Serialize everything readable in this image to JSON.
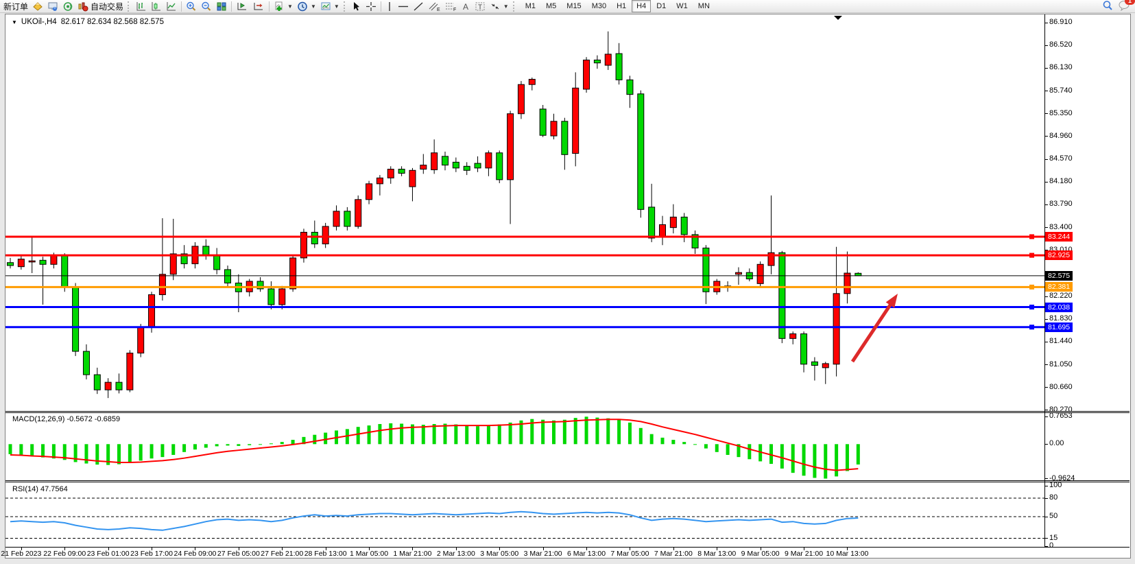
{
  "toolbar": {
    "new_order": "新订单",
    "auto_trading": "自动交易",
    "timeframes": [
      "M1",
      "M5",
      "M15",
      "M30",
      "H1",
      "H4",
      "D1",
      "W1",
      "MN"
    ],
    "active_timeframe": "H4",
    "notification_badge": "1"
  },
  "chart": {
    "symbol_title": "UKOil-,H4",
    "ohlc_text": "82.617 82.634 82.568 82.575"
  },
  "chart_data": [
    {
      "type": "candlestick",
      "title": "UKOil-,H4",
      "current_bar": {
        "open": "82.617",
        "high": "82.634",
        "low": "82.568",
        "close": "82.575"
      },
      "y_axis_ticks": [
        "86.910",
        "86.520",
        "86.130",
        "85.740",
        "85.350",
        "84.960",
        "84.570",
        "84.180",
        "83.790",
        "83.400",
        "83.010",
        "82.220",
        "81.830",
        "81.440",
        "81.050",
        "80.660",
        "80.270"
      ],
      "x_axis_labels": [
        "21 Feb 2023",
        "22 Feb 09:00",
        "23 Feb 01:00",
        "23 Feb 17:00",
        "24 Feb 09:00",
        "27 Feb 05:00",
        "27 Feb 21:00",
        "28 Feb 13:00",
        "1 Mar 05:00",
        "1 Mar 21:00",
        "2 Mar 13:00",
        "3 Mar 05:00",
        "3 Mar 21:00",
        "6 Mar 13:00",
        "7 Mar 05:00",
        "7 Mar 21:00",
        "8 Mar 13:00",
        "9 Mar 05:00",
        "9 Mar 21:00",
        "10 Mar 13:00"
      ],
      "ylim": [
        80.27,
        86.91
      ],
      "grid": false,
      "colors": {
        "bull": "#FF0000",
        "bear": "#00D800",
        "wick": "#000000",
        "background": "#FFFFFF"
      },
      "hlines": [
        {
          "label": "83.244",
          "price": 83.244,
          "color": "#FE0000",
          "width": 3
        },
        {
          "label": "82.925",
          "price": 82.925,
          "color": "#FE0000",
          "width": 3
        },
        {
          "label": "82.575",
          "price": 82.575,
          "color": "#000000",
          "width": 1
        },
        {
          "label": "82.381",
          "price": 82.381,
          "color": "#FF9B00",
          "width": 3
        },
        {
          "label": "82.038",
          "price": 82.038,
          "color": "#0000FE",
          "width": 3
        },
        {
          "label": "81.695",
          "price": 81.695,
          "color": "#0000FE",
          "width": 3
        }
      ],
      "annotation_arrow": {
        "color": "#DD2A2A",
        "from_price": 80.97,
        "to_price": 82.13,
        "comment": "red up arrow pointing to recovery"
      },
      "bars": [
        [
          82.8,
          82.88,
          82.7,
          82.75
        ],
        [
          82.73,
          82.92,
          82.68,
          82.86
        ],
        [
          82.81,
          83.24,
          82.62,
          82.83
        ],
        [
          82.84,
          82.9,
          82.08,
          82.77
        ],
        [
          82.77,
          82.97,
          82.7,
          82.92
        ],
        [
          82.92,
          82.96,
          82.3,
          82.38
        ],
        [
          82.38,
          82.45,
          81.2,
          81.28
        ],
        [
          81.28,
          81.4,
          80.8,
          80.88
        ],
        [
          80.88,
          81.0,
          80.55,
          80.62
        ],
        [
          80.62,
          80.82,
          80.48,
          80.75
        ],
        [
          80.75,
          80.9,
          80.56,
          80.62
        ],
        [
          80.62,
          81.3,
          80.58,
          81.25
        ],
        [
          81.25,
          81.75,
          81.18,
          81.7
        ],
        [
          81.7,
          82.3,
          81.6,
          82.25
        ],
        [
          82.25,
          83.56,
          82.15,
          82.6
        ],
        [
          82.6,
          83.55,
          82.5,
          82.95
        ],
        [
          82.95,
          83.1,
          82.7,
          82.78
        ],
        [
          82.78,
          83.15,
          82.7,
          83.08
        ],
        [
          83.08,
          83.2,
          82.85,
          82.92
        ],
        [
          82.92,
          83.05,
          82.6,
          82.68
        ],
        [
          82.68,
          82.75,
          82.38,
          82.45
        ],
        [
          82.45,
          82.6,
          81.95,
          82.3
        ],
        [
          82.3,
          82.52,
          82.22,
          82.48
        ],
        [
          82.48,
          82.55,
          82.3,
          82.35
        ],
        [
          82.35,
          82.48,
          82.0,
          82.08
        ],
        [
          82.08,
          82.4,
          82.0,
          82.35
        ],
        [
          82.35,
          82.92,
          82.3,
          82.88
        ],
        [
          82.88,
          83.38,
          82.8,
          83.32
        ],
        [
          83.32,
          83.52,
          83.05,
          83.12
        ],
        [
          83.12,
          83.48,
          83.05,
          83.42
        ],
        [
          83.42,
          83.78,
          83.35,
          83.68
        ],
        [
          83.68,
          83.75,
          83.35,
          83.42
        ],
        [
          83.42,
          83.95,
          83.38,
          83.88
        ],
        [
          83.88,
          84.2,
          83.8,
          84.15
        ],
        [
          84.15,
          84.3,
          83.95,
          84.25
        ],
        [
          84.25,
          84.45,
          84.15,
          84.4
        ],
        [
          84.4,
          84.45,
          84.28,
          84.33
        ],
        [
          84.1,
          84.42,
          83.85,
          84.38
        ],
        [
          84.4,
          84.66,
          84.32,
          84.47
        ],
        [
          84.39,
          84.91,
          84.32,
          84.68
        ],
        [
          84.62,
          84.7,
          84.38,
          84.47
        ],
        [
          84.52,
          84.6,
          84.35,
          84.42
        ],
        [
          84.45,
          84.52,
          84.3,
          84.38
        ],
        [
          84.5,
          84.62,
          84.35,
          84.42
        ],
        [
          84.42,
          84.72,
          84.28,
          84.68
        ],
        [
          84.68,
          84.72,
          84.16,
          84.22
        ],
        [
          84.22,
          85.4,
          83.46,
          85.35
        ],
        [
          85.35,
          85.91,
          85.26,
          85.85
        ],
        [
          85.85,
          85.97,
          85.75,
          85.94
        ],
        [
          85.43,
          85.5,
          84.95,
          84.98
        ],
        [
          84.97,
          85.35,
          84.91,
          85.22
        ],
        [
          85.22,
          85.28,
          84.39,
          84.65
        ],
        [
          84.67,
          86.06,
          84.45,
          85.79
        ],
        [
          85.77,
          86.32,
          85.71,
          86.27
        ],
        [
          86.27,
          86.35,
          86.12,
          86.22
        ],
        [
          86.18,
          86.76,
          86.1,
          86.37
        ],
        [
          86.38,
          86.56,
          85.85,
          85.93
        ],
        [
          85.93,
          86.0,
          85.45,
          85.68
        ],
        [
          85.69,
          85.75,
          83.57,
          83.71
        ],
        [
          83.75,
          84.15,
          83.15,
          83.22
        ],
        [
          83.25,
          83.6,
          83.1,
          83.45
        ],
        [
          83.4,
          83.8,
          83.3,
          83.58
        ],
        [
          83.58,
          83.65,
          83.15,
          83.28
        ],
        [
          83.28,
          83.35,
          82.95,
          83.05
        ],
        [
          83.05,
          83.1,
          82.09,
          82.3
        ],
        [
          82.3,
          82.52,
          82.25,
          82.48
        ],
        [
          82.4,
          82.48,
          82.3,
          82.4
        ],
        [
          82.6,
          82.72,
          82.42,
          82.63
        ],
        [
          82.63,
          82.7,
          82.48,
          82.52
        ],
        [
          82.44,
          82.82,
          82.38,
          82.77
        ],
        [
          82.75,
          83.95,
          82.6,
          82.97
        ],
        [
          82.97,
          83.0,
          81.42,
          81.5
        ],
        [
          81.5,
          81.62,
          81.4,
          81.58
        ],
        [
          81.58,
          81.62,
          80.92,
          81.06
        ],
        [
          81.1,
          81.18,
          80.78,
          81.04
        ],
        [
          81.0,
          81.1,
          80.72,
          81.07
        ],
        [
          81.06,
          83.07,
          80.85,
          82.27
        ],
        [
          82.27,
          82.99,
          82.1,
          82.62
        ],
        [
          82.617,
          82.634,
          82.568,
          82.575
        ]
      ]
    },
    {
      "type": "bar",
      "name": "MACD",
      "label": "MACD(12,26,9) -0.5672 -0.6859",
      "value": "-0.5672",
      "signal_value": "-0.6859",
      "axis_ticks": [
        "0.7653",
        "0.00",
        "-0.9624"
      ],
      "ylim": [
        -0.9624,
        0.7653
      ],
      "colors": {
        "histogram": "#00D800",
        "signal": "#FF0000"
      },
      "histogram": [
        -0.28,
        -0.3,
        -0.33,
        -0.37,
        -0.4,
        -0.44,
        -0.5,
        -0.54,
        -0.57,
        -0.58,
        -0.56,
        -0.52,
        -0.46,
        -0.4,
        -0.36,
        -0.3,
        -0.22,
        -0.15,
        -0.1,
        -0.06,
        -0.04,
        -0.05,
        -0.03,
        0.0,
        0.02,
        0.06,
        0.12,
        0.2,
        0.26,
        0.32,
        0.38,
        0.42,
        0.48,
        0.52,
        0.56,
        0.58,
        0.57,
        0.55,
        0.54,
        0.56,
        0.57,
        0.55,
        0.52,
        0.5,
        0.52,
        0.55,
        0.6,
        0.66,
        0.7,
        0.68,
        0.66,
        0.68,
        0.73,
        0.765,
        0.74,
        0.72,
        0.68,
        0.6,
        0.45,
        0.28,
        0.18,
        0.12,
        0.06,
        -0.02,
        -0.12,
        -0.22,
        -0.3,
        -0.36,
        -0.42,
        -0.48,
        -0.55,
        -0.68,
        -0.8,
        -0.88,
        -0.94,
        -0.96,
        -0.9,
        -0.75,
        -0.5672
      ],
      "signal": [
        -0.3,
        -0.31,
        -0.33,
        -0.34,
        -0.36,
        -0.38,
        -0.41,
        -0.44,
        -0.47,
        -0.49,
        -0.51,
        -0.51,
        -0.5,
        -0.48,
        -0.46,
        -0.43,
        -0.39,
        -0.34,
        -0.29,
        -0.24,
        -0.2,
        -0.17,
        -0.14,
        -0.11,
        -0.08,
        -0.05,
        -0.01,
        0.03,
        0.08,
        0.13,
        0.18,
        0.23,
        0.28,
        0.33,
        0.38,
        0.42,
        0.45,
        0.47,
        0.48,
        0.5,
        0.51,
        0.52,
        0.52,
        0.52,
        0.52,
        0.53,
        0.54,
        0.56,
        0.59,
        0.61,
        0.62,
        0.63,
        0.65,
        0.67,
        0.68,
        0.69,
        0.69,
        0.67,
        0.63,
        0.56,
        0.48,
        0.41,
        0.34,
        0.27,
        0.19,
        0.11,
        0.03,
        -0.05,
        -0.14,
        -0.22,
        -0.3,
        -0.38,
        -0.47,
        -0.56,
        -0.64,
        -0.7,
        -0.73,
        -0.71,
        -0.6859
      ]
    },
    {
      "type": "line",
      "name": "RSI",
      "label": "RSI(14) 47.7564",
      "value": "47.7564",
      "levels": [
        80,
        50,
        15
      ],
      "axis_ticks": [
        "100",
        "80",
        "50",
        "15",
        "0"
      ],
      "ylim": [
        0,
        100
      ],
      "color": "#3394F0",
      "values": [
        42,
        43,
        42,
        41,
        42,
        40,
        36,
        33,
        30,
        29,
        30,
        32,
        31,
        29,
        28,
        31,
        34,
        38,
        42,
        45,
        46,
        44,
        45,
        44,
        42,
        44,
        48,
        51,
        53,
        51,
        52,
        51,
        53,
        54,
        55,
        55,
        54,
        53,
        54,
        55,
        54,
        53,
        54,
        55,
        56,
        55,
        57,
        58,
        57,
        55,
        54,
        55,
        56,
        57,
        56,
        57,
        56,
        53,
        48,
        44,
        46,
        47,
        46,
        44,
        42,
        43,
        44,
        45,
        44,
        45,
        46,
        41,
        42,
        39,
        38,
        39,
        44,
        47,
        47.7564
      ]
    }
  ]
}
